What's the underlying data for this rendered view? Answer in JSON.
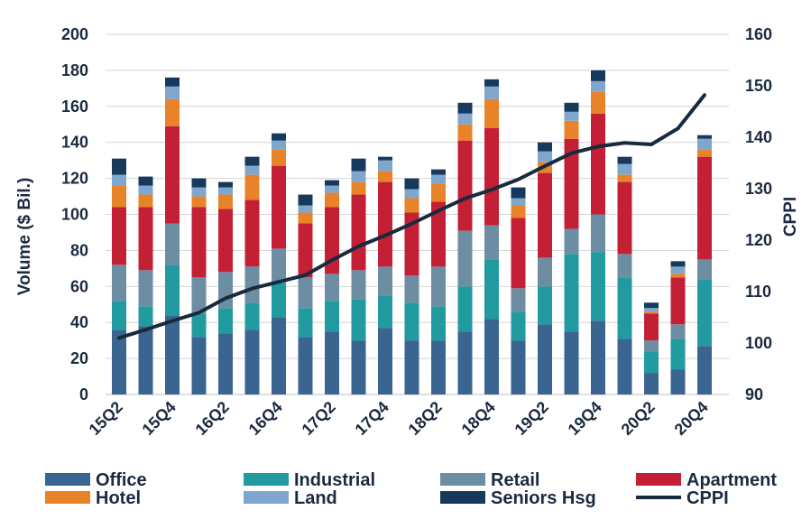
{
  "chart_data": {
    "type": "bar",
    "stacked": true,
    "categories": [
      "15Q2",
      "15Q3",
      "15Q4",
      "16Q1",
      "16Q2",
      "16Q3",
      "16Q4",
      "17Q1",
      "17Q2",
      "17Q3",
      "17Q4",
      "18Q1",
      "18Q2",
      "18Q3",
      "18Q4",
      "19Q1",
      "19Q2",
      "19Q3",
      "19Q4",
      "20Q1",
      "20Q2",
      "20Q3",
      "20Q4"
    ],
    "x_tick_labels": [
      "15Q2",
      "15Q4",
      "16Q2",
      "16Q4",
      "17Q2",
      "17Q4",
      "18Q2",
      "18Q4",
      "19Q2",
      "19Q4",
      "20Q2",
      "20Q4"
    ],
    "ylabel": "Volume ($ Bil.)",
    "ylim": [
      0,
      200
    ],
    "yticks": [
      0,
      20,
      40,
      60,
      80,
      100,
      120,
      140,
      160,
      180,
      200
    ],
    "y2label": "CPPI",
    "y2lim": [
      90,
      160
    ],
    "y2ticks": [
      90,
      100,
      110,
      120,
      130,
      140,
      150,
      160
    ],
    "grid": true,
    "legend_position": "bottom",
    "series": [
      {
        "name": "Office",
        "color": "#3a6591",
        "values": [
          36,
          38,
          44,
          32,
          34,
          36,
          43,
          32,
          35,
          30,
          37,
          30,
          30,
          35,
          42,
          30,
          39,
          35,
          41,
          31,
          12,
          14,
          27
        ]
      },
      {
        "name": "Industrial",
        "color": "#219aa0",
        "values": [
          16,
          11,
          28,
          13,
          14,
          15,
          19,
          16,
          17,
          23,
          18,
          21,
          19,
          25,
          33,
          16,
          21,
          43,
          38,
          34,
          12,
          17,
          37
        ]
      },
      {
        "name": "Retail",
        "color": "#6d8da3",
        "values": [
          20,
          20,
          23,
          20,
          20,
          20,
          19,
          17,
          15,
          16,
          16,
          15,
          22,
          31,
          19,
          13,
          16,
          14,
          21,
          13,
          6,
          8,
          11
        ]
      },
      {
        "name": "Apartment",
        "color": "#c42035",
        "values": [
          32,
          35,
          54,
          39,
          35,
          37,
          46,
          30,
          37,
          42,
          47,
          35,
          36,
          50,
          54,
          39,
          47,
          50,
          56,
          40,
          15,
          26,
          57
        ]
      },
      {
        "name": "Hotel",
        "color": "#e8832a",
        "values": [
          12,
          7,
          15,
          6,
          8,
          14,
          9,
          6,
          8,
          7,
          6,
          8,
          10,
          9,
          16,
          7,
          6,
          10,
          12,
          4,
          1,
          2,
          4
        ]
      },
      {
        "name": "Land",
        "color": "#7fa7cd",
        "values": [
          6,
          5,
          7,
          5,
          4,
          5,
          5,
          4,
          4,
          6,
          6,
          5,
          5,
          6,
          7,
          4,
          6,
          5,
          6,
          6,
          2,
          4,
          6
        ]
      },
      {
        "name": "Seniors Hsg",
        "color": "#173a5c",
        "values": [
          9,
          5,
          5,
          5,
          3,
          5,
          4,
          6,
          3,
          7,
          2,
          6,
          3,
          6,
          4,
          6,
          5,
          5,
          6,
          4,
          3,
          3,
          2
        ]
      }
    ],
    "line_series": {
      "name": "CPPI",
      "color": "#182a3e",
      "axis": "right",
      "values": [
        101,
        102.6,
        104.3,
        105.9,
        108.7,
        110.6,
        111.9,
        113.2,
        116.1,
        118.8,
        120.9,
        123.2,
        125.7,
        128.1,
        129.8,
        131.8,
        134.4,
        136.9,
        138.2,
        138.9,
        138.6,
        141.7,
        148.2
      ]
    }
  }
}
